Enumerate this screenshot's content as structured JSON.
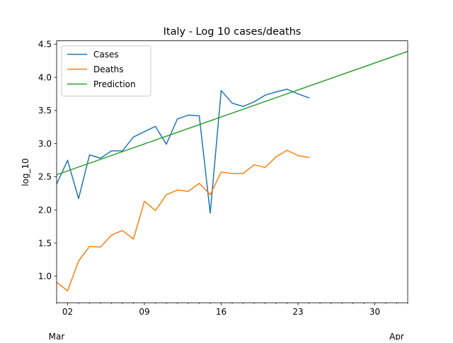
{
  "chart_data": {
    "type": "line",
    "title": "Italy - Log 10 cases/deaths",
    "xlabel": "",
    "ylabel": "log_10",
    "xlim": [
      "2020-03-01",
      "2020-04-02"
    ],
    "ylim": [
      0.6,
      4.55
    ],
    "grid": false,
    "legend_position": "top-left",
    "x_major_ticks": [
      {
        "date": "2020-03-02",
        "label": "02"
      },
      {
        "date": "2020-03-09",
        "label": "09"
      },
      {
        "date": "2020-03-16",
        "label": "16"
      },
      {
        "date": "2020-03-23",
        "label": "23"
      },
      {
        "date": "2020-03-30",
        "label": "30"
      }
    ],
    "x_secondary_labels": [
      {
        "date": "2020-03-01",
        "label": "Mar"
      },
      {
        "date": "2020-04-01",
        "label": "Apr"
      }
    ],
    "y_ticks": [
      1.0,
      1.5,
      2.0,
      2.5,
      3.0,
      3.5,
      4.0,
      4.5
    ],
    "y_tick_labels": [
      "1.0",
      "1.5",
      "2.0",
      "2.5",
      "3.0",
      "3.5",
      "4.0",
      "4.5"
    ],
    "series": [
      {
        "name": "Cases",
        "color": "#1f77b4",
        "x": [
          "2020-03-01",
          "2020-03-02",
          "2020-03-03",
          "2020-03-04",
          "2020-03-05",
          "2020-03-06",
          "2020-03-07",
          "2020-03-08",
          "2020-03-09",
          "2020-03-10",
          "2020-03-11",
          "2020-03-12",
          "2020-03-13",
          "2020-03-14",
          "2020-03-15",
          "2020-03-16",
          "2020-03-17",
          "2020-03-18",
          "2020-03-19",
          "2020-03-20",
          "2020-03-21",
          "2020-03-22",
          "2020-03-23",
          "2020-03-24"
        ],
        "y": [
          2.39,
          2.75,
          2.17,
          2.83,
          2.78,
          2.89,
          2.89,
          3.1,
          3.18,
          3.26,
          2.99,
          3.37,
          3.43,
          3.42,
          1.95,
          3.8,
          3.61,
          3.56,
          3.63,
          3.73,
          3.78,
          3.82,
          3.75,
          3.69
        ]
      },
      {
        "name": "Deaths",
        "color": "#ff7f0e",
        "x": [
          "2020-03-01",
          "2020-03-02",
          "2020-03-03",
          "2020-03-04",
          "2020-03-05",
          "2020-03-06",
          "2020-03-07",
          "2020-03-08",
          "2020-03-09",
          "2020-03-10",
          "2020-03-11",
          "2020-03-12",
          "2020-03-13",
          "2020-03-14",
          "2020-03-15",
          "2020-03-16",
          "2020-03-17",
          "2020-03-18",
          "2020-03-19",
          "2020-03-20",
          "2020-03-21",
          "2020-03-22",
          "2020-03-23",
          "2020-03-24"
        ],
        "y": [
          0.91,
          0.78,
          1.23,
          1.45,
          1.44,
          1.62,
          1.69,
          1.56,
          2.13,
          1.99,
          2.23,
          2.3,
          2.28,
          2.4,
          2.23,
          2.57,
          2.55,
          2.55,
          2.68,
          2.64,
          2.8,
          2.9,
          2.82,
          2.79
        ]
      },
      {
        "name": "Prediction",
        "color": "#2ca02c",
        "x": [
          "2020-03-01",
          "2020-04-02"
        ],
        "y": [
          2.53,
          4.39
        ]
      }
    ]
  }
}
